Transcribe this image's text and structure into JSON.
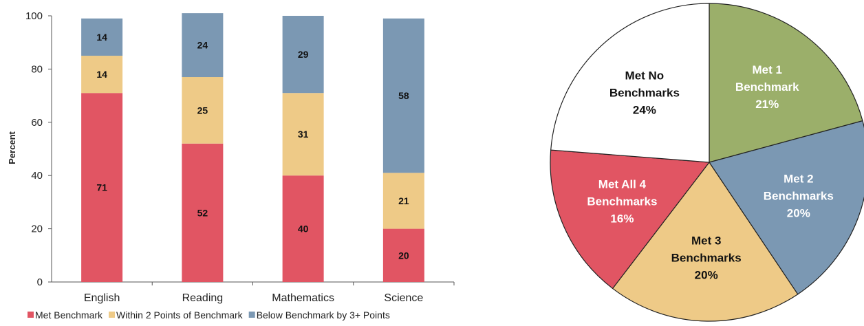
{
  "chart_data": [
    {
      "type": "bar",
      "stacked": true,
      "categories": [
        "English",
        "Reading",
        "Mathematics",
        "Science"
      ],
      "series": [
        {
          "name": "Met Benchmark",
          "color": "#E15563",
          "values": [
            71,
            52,
            40,
            20
          ]
        },
        {
          "name": "Within 2 Points of Benchmark",
          "color": "#EECA87",
          "values": [
            14,
            25,
            31,
            21
          ]
        },
        {
          "name": "Below Benchmark by 3+ Points",
          "color": "#7B98B3",
          "values": [
            14,
            24,
            29,
            58
          ]
        }
      ],
      "ylabel": "Percent",
      "ylim": [
        0,
        100
      ],
      "yticks": [
        "0",
        "20",
        "40",
        "60",
        "80",
        "100"
      ],
      "legend_position": "bottom",
      "grid": false
    },
    {
      "type": "pie",
      "slices": [
        {
          "lines": [
            "Met 1",
            "Benchmark"
          ],
          "pct_label": "21%",
          "value": 21,
          "color": "#9BAF6A",
          "text_color": "#ffffff"
        },
        {
          "lines": [
            "Met 2",
            "Benchmarks"
          ],
          "pct_label": "20%",
          "value": 20,
          "color": "#7B98B3",
          "text_color": "#ffffff"
        },
        {
          "lines": [
            "Met 3",
            "Benchmarks"
          ],
          "pct_label": "20%",
          "value": 20,
          "color": "#EECA87",
          "text_color": "#111111"
        },
        {
          "lines": [
            "Met All 4",
            "Benchmarks"
          ],
          "pct_label": "16%",
          "value": 16,
          "color": "#E15563",
          "text_color": "#ffffff"
        },
        {
          "lines": [
            "Met No",
            "Benchmarks"
          ],
          "pct_label": "24%",
          "value": 24,
          "color": "#FFFFFF",
          "text_color": "#111111"
        }
      ]
    }
  ]
}
